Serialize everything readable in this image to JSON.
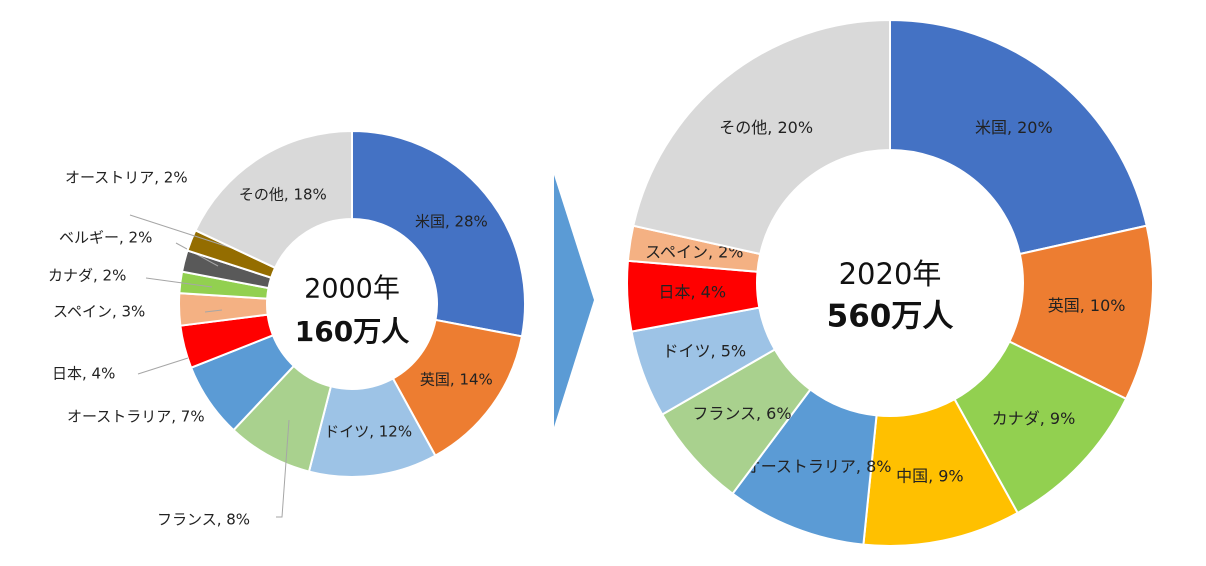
{
  "chart_data": [
    {
      "type": "pie",
      "center_year": "2000年",
      "center_total": "160万人",
      "slices": [
        {
          "label": "米国, 28%",
          "value": 28,
          "color": "#4472C4"
        },
        {
          "label": "英国, 14%",
          "value": 14,
          "color": "#ED7D31"
        },
        {
          "label": "ドイツ, 12%",
          "value": 12,
          "color": "#9DC3E6"
        },
        {
          "label": "フランス, 8%",
          "value": 8,
          "color": "#A9D18E"
        },
        {
          "label": "オーストラリア, 7%",
          "value": 7,
          "color": "#5B9BD5"
        },
        {
          "label": "日本, 4%",
          "value": 4,
          "color": "#FF0000"
        },
        {
          "label": "スペイン, 3%",
          "value": 3,
          "color": "#F4B183"
        },
        {
          "label": "カナダ, 2%",
          "value": 2,
          "color": "#92D050"
        },
        {
          "label": "ベルギー, 2%",
          "value": 2,
          "color": "#595959"
        },
        {
          "label": "オーストリア, 2%",
          "value": 2,
          "color": "#946D00"
        },
        {
          "label": "その他, 18%",
          "value": 18,
          "color": "#D9D9D9"
        }
      ]
    },
    {
      "type": "pie",
      "center_year": "2020年",
      "center_total": "560万人",
      "slices": [
        {
          "label": "米国, 20%",
          "value": 20,
          "color": "#4472C4"
        },
        {
          "label": "英国, 10%",
          "value": 10,
          "color": "#ED7D31"
        },
        {
          "label": "カナダ, 9%",
          "value": 9,
          "color": "#92D050"
        },
        {
          "label": "中国, 9%",
          "value": 9,
          "color": "#FFC000"
        },
        {
          "label": "オーストラリア, 8%",
          "value": 8,
          "color": "#5B9BD5"
        },
        {
          "label": "フランス, 6%",
          "value": 6,
          "color": "#A9D18E"
        },
        {
          "label": "ドイツ, 5%",
          "value": 5,
          "color": "#9DC3E6"
        },
        {
          "label": "日本, 4%",
          "value": 4,
          "color": "#FF0000"
        },
        {
          "label": "スペイン, 2%",
          "value": 2,
          "color": "#F4B183"
        },
        {
          "label": "その他, 20%",
          "value": 20,
          "color": "#D9D9D9"
        }
      ]
    }
  ],
  "arrow_color": "#5B9BD5"
}
